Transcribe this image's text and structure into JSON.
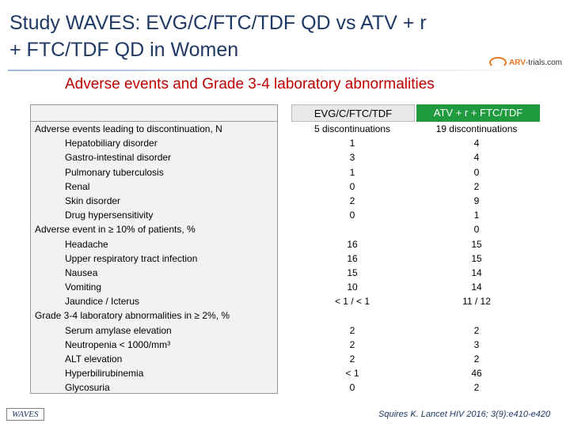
{
  "title": {
    "line1": "Study WAVES: EVG/C/FTC/TDF QD vs ATV + r",
    "line2": "+ FTC/TDF QD in Women"
  },
  "logo": {
    "brand": "ARV",
    "rest": "-trials.com"
  },
  "subtitle": "Adverse events and Grade 3-4 laboratory abnormalities",
  "columns": {
    "col1": "EVG/C/FTC/TDF",
    "col2": "ATV + r + FTC/TDF"
  },
  "rows": [
    {
      "label": "Adverse events leading to discontinuation, N",
      "indent": false,
      "v1": "5 discontinuations",
      "v2": "19 discontinuations"
    },
    {
      "label": "Hepatobiliary disorder",
      "indent": true,
      "v1": "1",
      "v2": "4"
    },
    {
      "label": "Gastro-intestinal disorder",
      "indent": true,
      "v1": "3",
      "v2": "4"
    },
    {
      "label": "Pulmonary tuberculosis",
      "indent": true,
      "v1": "1",
      "v2": "0"
    },
    {
      "label": "Renal",
      "indent": true,
      "v1": "0",
      "v2": "2"
    },
    {
      "label": "Skin disorder",
      "indent": true,
      "v1": "2",
      "v2": "9"
    },
    {
      "label": "Drug hypersensitivity",
      "indent": true,
      "v1": "0",
      "v2": "1"
    },
    {
      "label": "Adverse event in ≥ 10% of patients, %",
      "indent": false,
      "v1": "",
      "v2": "0"
    },
    {
      "label": "Headache",
      "indent": true,
      "v1": "16",
      "v2": "15"
    },
    {
      "label": "Upper respiratory tract infection",
      "indent": true,
      "v1": "16",
      "v2": "15"
    },
    {
      "label": "Nausea",
      "indent": true,
      "v1": "15",
      "v2": "14"
    },
    {
      "label": "Vomiting",
      "indent": true,
      "v1": "10",
      "v2": "14"
    },
    {
      "label": "Jaundice / Icterus",
      "indent": true,
      "v1": "< 1 / < 1",
      "v2": "11 / 12"
    },
    {
      "label": "Grade 3-4 laboratory abnormalities in ≥ 2%, %",
      "indent": false,
      "v1": "",
      "v2": ""
    },
    {
      "label": "Serum amylase elevation",
      "indent": true,
      "v1": "2",
      "v2": "2"
    },
    {
      "label": "Neutropenia < 1000/mm³",
      "indent": true,
      "v1": "2",
      "v2": "3"
    },
    {
      "label": "ALT elevation",
      "indent": true,
      "v1": "2",
      "v2": "2"
    },
    {
      "label": "Hyperbilirubinemia",
      "indent": true,
      "v1": "< 1",
      "v2": "46"
    },
    {
      "label": "Glycosuria",
      "indent": true,
      "v1": "0",
      "v2": "2"
    }
  ],
  "footer": {
    "study": "WAVES",
    "citation": "Squires K. Lancet HIV 2016; 3(9):e410-e420"
  },
  "colors": {
    "title": "#1f3864",
    "subtitle": "#c00000",
    "header2_bg": "#1f9a3e",
    "logo_accent": "#e87722"
  }
}
